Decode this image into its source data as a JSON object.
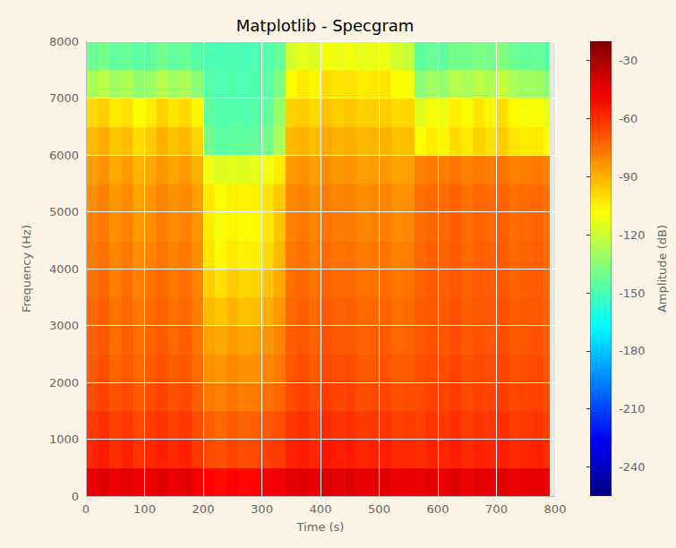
{
  "chart_data": {
    "type": "heatmap",
    "title": "Matplotlib - Specgram",
    "x_label": "Time (s)",
    "y_label": "Frequency (Hz)",
    "xlim": [
      0,
      800
    ],
    "xticks": [
      0,
      100,
      200,
      300,
      400,
      500,
      600,
      700,
      800
    ],
    "ylim": [
      0,
      8000
    ],
    "yticks": [
      0,
      1000,
      2000,
      3000,
      4000,
      5000,
      6000,
      7000,
      8000
    ],
    "grid": true,
    "x_bins": [
      0,
      20,
      40,
      60,
      80,
      100,
      120,
      140,
      160,
      180,
      200,
      220,
      240,
      260,
      280,
      300,
      320,
      340,
      360,
      380,
      400,
      420,
      440,
      460,
      480,
      500,
      520,
      540,
      560,
      580,
      600,
      620,
      640,
      660,
      680,
      700,
      720,
      740,
      760,
      780,
      790
    ],
    "y_bins": [
      0,
      500,
      1000,
      1500,
      2000,
      2500,
      3000,
      3500,
      4000,
      4500,
      5000,
      5500,
      6000,
      6500,
      7000,
      7500,
      8000
    ],
    "cells": [
      [
        -44,
        -42,
        -45,
        -43,
        -46,
        -44,
        -42,
        -45,
        -43,
        -47,
        -50,
        -52,
        -49,
        -51,
        -50,
        -48,
        -47,
        -43,
        -42,
        -44,
        -41,
        -43,
        -42,
        -44,
        -43,
        -42,
        -45,
        -44,
        -45,
        -43,
        -44,
        -42,
        -45,
        -43,
        -44,
        -42,
        -45,
        -44,
        -43,
        -46
      ],
      [
        -58,
        -55,
        -60,
        -57,
        -61,
        -58,
        -56,
        -59,
        -57,
        -62,
        -66,
        -68,
        -65,
        -67,
        -66,
        -64,
        -63,
        -57,
        -55,
        -58,
        -54,
        -56,
        -55,
        -58,
        -57,
        -56,
        -59,
        -58,
        -60,
        -57,
        -58,
        -56,
        -59,
        -57,
        -58,
        -56,
        -59,
        -58,
        -57,
        -60
      ],
      [
        -63,
        -60,
        -64,
        -62,
        -66,
        -63,
        -61,
        -64,
        -62,
        -67,
        -71,
        -73,
        -70,
        -72,
        -71,
        -69,
        -68,
        -62,
        -60,
        -63,
        -59,
        -61,
        -60,
        -63,
        -62,
        -61,
        -64,
        -63,
        -64,
        -61,
        -62,
        -60,
        -63,
        -61,
        -62,
        -60,
        -63,
        -62,
        -61,
        -64
      ],
      [
        -67,
        -64,
        -68,
        -66,
        -70,
        -67,
        -65,
        -68,
        -66,
        -71,
        -77,
        -79,
        -76,
        -78,
        -77,
        -75,
        -73,
        -66,
        -64,
        -67,
        -63,
        -65,
        -64,
        -67,
        -66,
        -65,
        -68,
        -67,
        -66,
        -64,
        -65,
        -63,
        -66,
        -64,
        -65,
        -63,
        -66,
        -65,
        -64,
        -67
      ],
      [
        -70,
        -67,
        -72,
        -69,
        -73,
        -70,
        -68,
        -71,
        -69,
        -74,
        -82,
        -84,
        -81,
        -83,
        -82,
        -80,
        -77,
        -69,
        -67,
        -70,
        -66,
        -68,
        -67,
        -70,
        -69,
        -68,
        -71,
        -70,
        -68,
        -66,
        -67,
        -65,
        -68,
        -66,
        -67,
        -65,
        -68,
        -67,
        -66,
        -69
      ],
      [
        -72,
        -69,
        -74,
        -71,
        -75,
        -72,
        -70,
        -73,
        -71,
        -76,
        -86,
        -88,
        -85,
        -87,
        -86,
        -84,
        -80,
        -71,
        -69,
        -72,
        -68,
        -70,
        -69,
        -72,
        -71,
        -70,
        -73,
        -72,
        -70,
        -68,
        -69,
        -67,
        -70,
        -68,
        -69,
        -67,
        -70,
        -69,
        -68,
        -71
      ],
      [
        -74,
        -71,
        -76,
        -73,
        -77,
        -74,
        -72,
        -75,
        -73,
        -78,
        -92,
        -95,
        -91,
        -94,
        -93,
        -90,
        -84,
        -73,
        -71,
        -74,
        -70,
        -72,
        -71,
        -74,
        -73,
        -72,
        -75,
        -74,
        -71,
        -69,
        -70,
        -68,
        -71,
        -69,
        -70,
        -68,
        -71,
        -70,
        -69,
        -72
      ],
      [
        -76,
        -73,
        -78,
        -75,
        -79,
        -76,
        -74,
        -77,
        -75,
        -80,
        -97,
        -101,
        -96,
        -99,
        -98,
        -95,
        -88,
        -75,
        -73,
        -76,
        -72,
        -74,
        -73,
        -76,
        -75,
        -74,
        -77,
        -76,
        -72,
        -70,
        -71,
        -69,
        -72,
        -70,
        -71,
        -69,
        -72,
        -71,
        -70,
        -73
      ],
      [
        -78,
        -75,
        -80,
        -77,
        -82,
        -79,
        -76,
        -79,
        -77,
        -82,
        -102,
        -107,
        -103,
        -105,
        -104,
        -100,
        -92,
        -77,
        -75,
        -78,
        -74,
        -76,
        -75,
        -78,
        -77,
        -76,
        -79,
        -78,
        -73,
        -71,
        -72,
        -70,
        -73,
        -71,
        -72,
        -70,
        -73,
        -72,
        -71,
        -74
      ],
      [
        -80,
        -77,
        -82,
        -79,
        -85,
        -82,
        -78,
        -81,
        -79,
        -84,
        -104,
        -110,
        -106,
        -108,
        -107,
        -103,
        -95,
        -79,
        -77,
        -80,
        -76,
        -78,
        -77,
        -80,
        -79,
        -78,
        -81,
        -80,
        -74,
        -72,
        -73,
        -71,
        -74,
        -72,
        -73,
        -71,
        -74,
        -73,
        -72,
        -75
      ],
      [
        -82,
        -79,
        -84,
        -81,
        -87,
        -84,
        -80,
        -83,
        -81,
        -86,
        -103,
        -108,
        -105,
        -106,
        -105,
        -102,
        -96,
        -81,
        -79,
        -82,
        -78,
        -80,
        -79,
        -82,
        -81,
        -80,
        -83,
        -82,
        -75,
        -73,
        -74,
        -72,
        -75,
        -73,
        -74,
        -72,
        -75,
        -74,
        -73,
        -76
      ],
      [
        -86,
        -83,
        -88,
        -85,
        -91,
        -88,
        -84,
        -87,
        -85,
        -90,
        -112,
        -116,
        -114,
        -115,
        -114,
        -111,
        -104,
        -85,
        -83,
        -86,
        -82,
        -84,
        -83,
        -86,
        -85,
        -84,
        -87,
        -86,
        -79,
        -77,
        -78,
        -76,
        -79,
        -77,
        -78,
        -76,
        -79,
        -78,
        -77,
        -80
      ],
      [
        -92,
        -89,
        -95,
        -93,
        -100,
        -96,
        -90,
        -94,
        -92,
        -98,
        -140,
        -146,
        -144,
        -145,
        -144,
        -140,
        -128,
        -92,
        -90,
        -93,
        -88,
        -91,
        -89,
        -92,
        -91,
        -90,
        -94,
        -93,
        -108,
        -104,
        -106,
        -100,
        -103,
        -98,
        -101,
        -96,
        -102,
        -104,
        -103,
        -108
      ],
      [
        -100,
        -97,
        -103,
        -101,
        -108,
        -104,
        -98,
        -102,
        -100,
        -106,
        -145,
        -148,
        -147,
        -148,
        -147,
        -144,
        -132,
        -98,
        -96,
        -99,
        -94,
        -97,
        -95,
        -98,
        -97,
        -96,
        -100,
        -99,
        -115,
        -110,
        -112,
        -105,
        -108,
        -102,
        -106,
        -100,
        -107,
        -110,
        -109,
        -114
      ],
      [
        -128,
        -124,
        -130,
        -127,
        -134,
        -132,
        -125,
        -130,
        -128,
        -135,
        -147,
        -149,
        -148,
        -149,
        -148,
        -146,
        -138,
        -108,
        -104,
        -106,
        -100,
        -102,
        -101,
        -104,
        -103,
        -102,
        -108,
        -110,
        -135,
        -130,
        -132,
        -126,
        -128,
        -124,
        -127,
        -122,
        -128,
        -131,
        -130,
        -136
      ],
      [
        -142,
        -140,
        -144,
        -143,
        -146,
        -145,
        -141,
        -144,
        -143,
        -147,
        -149,
        -150,
        -149,
        -150,
        -149,
        -148,
        -144,
        -118,
        -114,
        -116,
        -110,
        -112,
        -111,
        -114,
        -113,
        -112,
        -118,
        -122,
        -145,
        -143,
        -144,
        -140,
        -141,
        -138,
        -140,
        -137,
        -142,
        -144,
        -143,
        -147
      ]
    ],
    "colorbar": {
      "label": "Amplitude (dB)",
      "range": [
        -255,
        -20
      ],
      "ticks": [
        -30,
        -60,
        -90,
        -120,
        -150,
        -180,
        -210,
        -240
      ]
    }
  }
}
